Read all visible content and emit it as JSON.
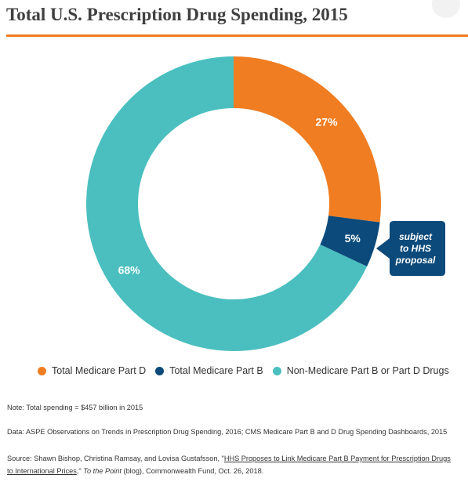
{
  "header": {
    "title": "Total U.S. Prescription Drug Spending, 2015"
  },
  "colors": {
    "accent_rule": "#f07d22",
    "medicare_part_d": "#f07d22",
    "medicare_part_b": "#0b4a7a",
    "non_medicare": "#4bbfbf",
    "callout_bg": "#0b4a7a"
  },
  "chart_data": {
    "type": "pie",
    "subtype": "donut",
    "title": "Total U.S. Prescription Drug Spending, 2015",
    "unit": "percent of total spending",
    "slices": [
      {
        "name": "Total Medicare Part D",
        "value": 27,
        "label": "27%",
        "color": "#f07d22"
      },
      {
        "name": "Total Medicare Part B",
        "value": 5,
        "label": "5%",
        "color": "#0b4a7a"
      },
      {
        "name": "Non-Medicare Part B or Part D Drugs",
        "value": 68,
        "label": "68%",
        "color": "#4bbfbf"
      }
    ],
    "annotation": {
      "lines": [
        "subject",
        "to HHS",
        "proposal"
      ],
      "target": "Total Medicare Part B"
    },
    "legend": {
      "placement": "bottom",
      "entries": [
        "Total Medicare Part D",
        "Total Medicare Part B",
        "Non-Medicare Part B or Part D Drugs"
      ]
    }
  },
  "notes": {
    "note": "Note: Total spending = $457 billion in 2015",
    "data": "Data: ASPE Observations on Trends in Prescription Drug Spending, 2016; CMS Medicare Part B and D Drug Spending Dashboards, 2015",
    "source_prefix": "Source: Shawn Bishop, Christina Ramsay,  and Lovisa Gustafsson, \"",
    "source_link_line1": "HHS Proposes to Link Medicare Part B Payment for Prescription Drugs",
    "source_link_line2": "to International Prices",
    "source_mid": ",\" ",
    "source_italic": "To the Point",
    "source_suffix": " (blog), Commonwealth Fund, Oct. 26, 2018."
  }
}
